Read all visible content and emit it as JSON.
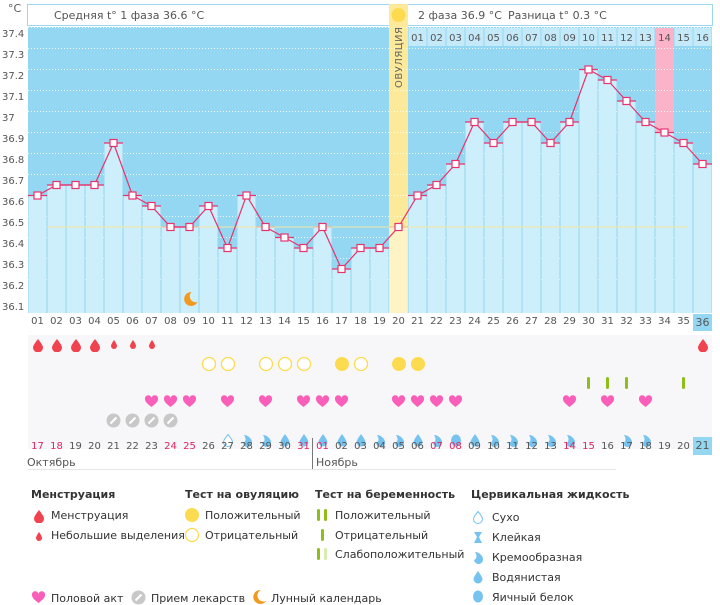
{
  "unit_label": "°C",
  "header": {
    "phase1": "Средняя t° 1 фаза 36.6 °C",
    "phase2": "2 фаза 36.9 °C",
    "difference": "Разница t° 0.3 °C",
    "ovulation_label": "ОВУЛЯЦИЯ"
  },
  "chart_data": {
    "type": "line",
    "title": "",
    "xlabel": "",
    "ylabel": "°C",
    "ylim": [
      36.1,
      37.5
    ],
    "y_ticks": [
      "37.4",
      "37.3",
      "37.2",
      "37.1",
      "37",
      "36.9",
      "36.8",
      "36.7",
      "36.6",
      "36.5",
      "36.4",
      "36.3",
      "36.2",
      "36.1"
    ],
    "cycle_days": [
      "01",
      "02",
      "03",
      "04",
      "05",
      "06",
      "07",
      "08",
      "09",
      "10",
      "11",
      "12",
      "13",
      "14",
      "15",
      "16",
      "17",
      "18",
      "19",
      "20",
      "21",
      "22",
      "23",
      "24",
      "25",
      "26",
      "27",
      "28",
      "29",
      "30",
      "31",
      "32",
      "33",
      "34",
      "35",
      "36"
    ],
    "values": [
      36.65,
      36.7,
      36.7,
      36.7,
      36.9,
      36.65,
      36.6,
      36.5,
      36.5,
      36.6,
      36.4,
      36.65,
      36.5,
      36.45,
      36.4,
      36.5,
      36.3,
      36.4,
      36.4,
      36.5,
      36.65,
      36.7,
      36.8,
      37.0,
      36.9,
      37.0,
      37.0,
      36.9,
      37.0,
      37.25,
      37.2,
      37.1,
      37.0,
      36.95,
      36.9,
      36.8
    ],
    "coverline": 36.5,
    "ovulation_day": 20,
    "phase2_days": [
      "01",
      "02",
      "03",
      "04",
      "05",
      "06",
      "07",
      "08",
      "09",
      "10",
      "11",
      "12",
      "13",
      "14",
      "15",
      "16"
    ],
    "highlight_phase2_day": "14",
    "current_day": "36",
    "moon_day": 9
  },
  "calendar": {
    "dates": [
      "17",
      "18",
      "19",
      "20",
      "21",
      "22",
      "23",
      "24",
      "25",
      "26",
      "27",
      "28",
      "29",
      "30",
      "31",
      "01",
      "02",
      "03",
      "04",
      "05",
      "06",
      "07",
      "08",
      "09",
      "10",
      "11",
      "12",
      "13",
      "14",
      "15",
      "16",
      "17",
      "18",
      "19",
      "20",
      "21"
    ],
    "weekend_flags": [
      1,
      1,
      0,
      0,
      0,
      0,
      0,
      1,
      1,
      0,
      0,
      0,
      0,
      0,
      1,
      1,
      0,
      0,
      0,
      0,
      0,
      1,
      1,
      0,
      0,
      0,
      0,
      0,
      1,
      1,
      0,
      0,
      0,
      0,
      0,
      0
    ],
    "month1": "Октябрь",
    "month2": "Ноябрь"
  },
  "rows": {
    "menstruation": [
      "big",
      "big",
      "big",
      "big",
      "small",
      "small",
      "small",
      "",
      "",
      "",
      "",
      "",
      "",
      "",
      "",
      "",
      "",
      "",
      "",
      "",
      "",
      "",
      "",
      "",
      "",
      "",
      "",
      "",
      "",
      "",
      "",
      "",
      "",
      "",
      "",
      "big"
    ],
    "ovulation_test": [
      "",
      "",
      "",
      "",
      "",
      "",
      "",
      "",
      "",
      "neg",
      "neg",
      "",
      "neg",
      "neg",
      "neg",
      "",
      "pos",
      "neg",
      "",
      "pos",
      "pos",
      "",
      "",
      "",
      "",
      "",
      "",
      "",
      "",
      "",
      "",
      "",
      "",
      "",
      "",
      ""
    ],
    "pregnancy_test": [
      "",
      "",
      "",
      "",
      "",
      "",
      "",
      "",
      "",
      "",
      "",
      "",
      "",
      "",
      "",
      "",
      "",
      "",
      "",
      "",
      "",
      "",
      "",
      "",
      "",
      "",
      "",
      "",
      "",
      "neg",
      "neg",
      "neg",
      "",
      "",
      "neg",
      ""
    ],
    "intercourse": [
      "",
      "",
      "",
      "",
      "",
      "",
      "1",
      "1",
      "1",
      "",
      "1",
      "",
      "1",
      "",
      "1",
      "1",
      "1",
      "",
      "",
      "1",
      "1",
      "1",
      "1",
      "",
      "",
      "",
      "",
      "",
      "1",
      "",
      "1",
      "",
      "1",
      "",
      "",
      ""
    ],
    "medication": [
      "",
      "",
      "",
      "",
      "1",
      "1",
      "1",
      "1",
      "",
      "",
      "",
      "",
      "",
      "",
      "",
      "",
      "",
      "",
      "",
      "",
      "",
      "",
      "",
      "",
      "",
      "",
      "",
      "",
      "",
      "",
      "",
      "",
      "",
      "",
      "",
      ""
    ],
    "fluid": [
      "",
      "",
      "",
      "",
      "",
      "",
      "",
      "",
      "",
      "",
      "dry",
      "cream",
      "cream",
      "watery",
      "watery",
      "watery",
      "watery",
      "watery",
      "cream",
      "cream",
      "watery",
      "cream",
      "egg",
      "watery",
      "cream",
      "cream",
      "cream",
      "cream",
      "cream",
      "",
      "",
      "cream",
      "cream",
      "",
      "",
      ""
    ]
  },
  "legend": {
    "menstruation": {
      "title": "Менструация",
      "items": [
        "Менструация",
        "Небольшие выделения"
      ]
    },
    "ovulation_test": {
      "title": "Тест на овуляцию",
      "items": [
        "Положительный",
        "Отрицательный"
      ]
    },
    "pregnancy_test": {
      "title": "Тест на беременность",
      "items": [
        "Положительный",
        "Отрицательный",
        "Слабоположительный"
      ]
    },
    "cervical_fluid": {
      "title": "Цервикальная жидкость",
      "items": [
        "Сухо",
        "Клейкая",
        "Кремообразная",
        "Водянистая",
        "Яичный белок"
      ]
    },
    "bottom": [
      "Половой акт",
      "Прием лекарств",
      "Лунный календарь"
    ]
  },
  "colors": {
    "plot_bg": "#93d7f2",
    "bar": "#cdeefb",
    "line": "#e8336d",
    "ovulation": "#fce99a",
    "highlight": "#fbb3c9",
    "blood": "#f0424f",
    "sun": "#fddb50",
    "heart": "#f95fb8",
    "pill": "#c8c8c8",
    "drop": "#77c3ef",
    "green": "#8fbe19",
    "weekend": "#e0245e"
  }
}
